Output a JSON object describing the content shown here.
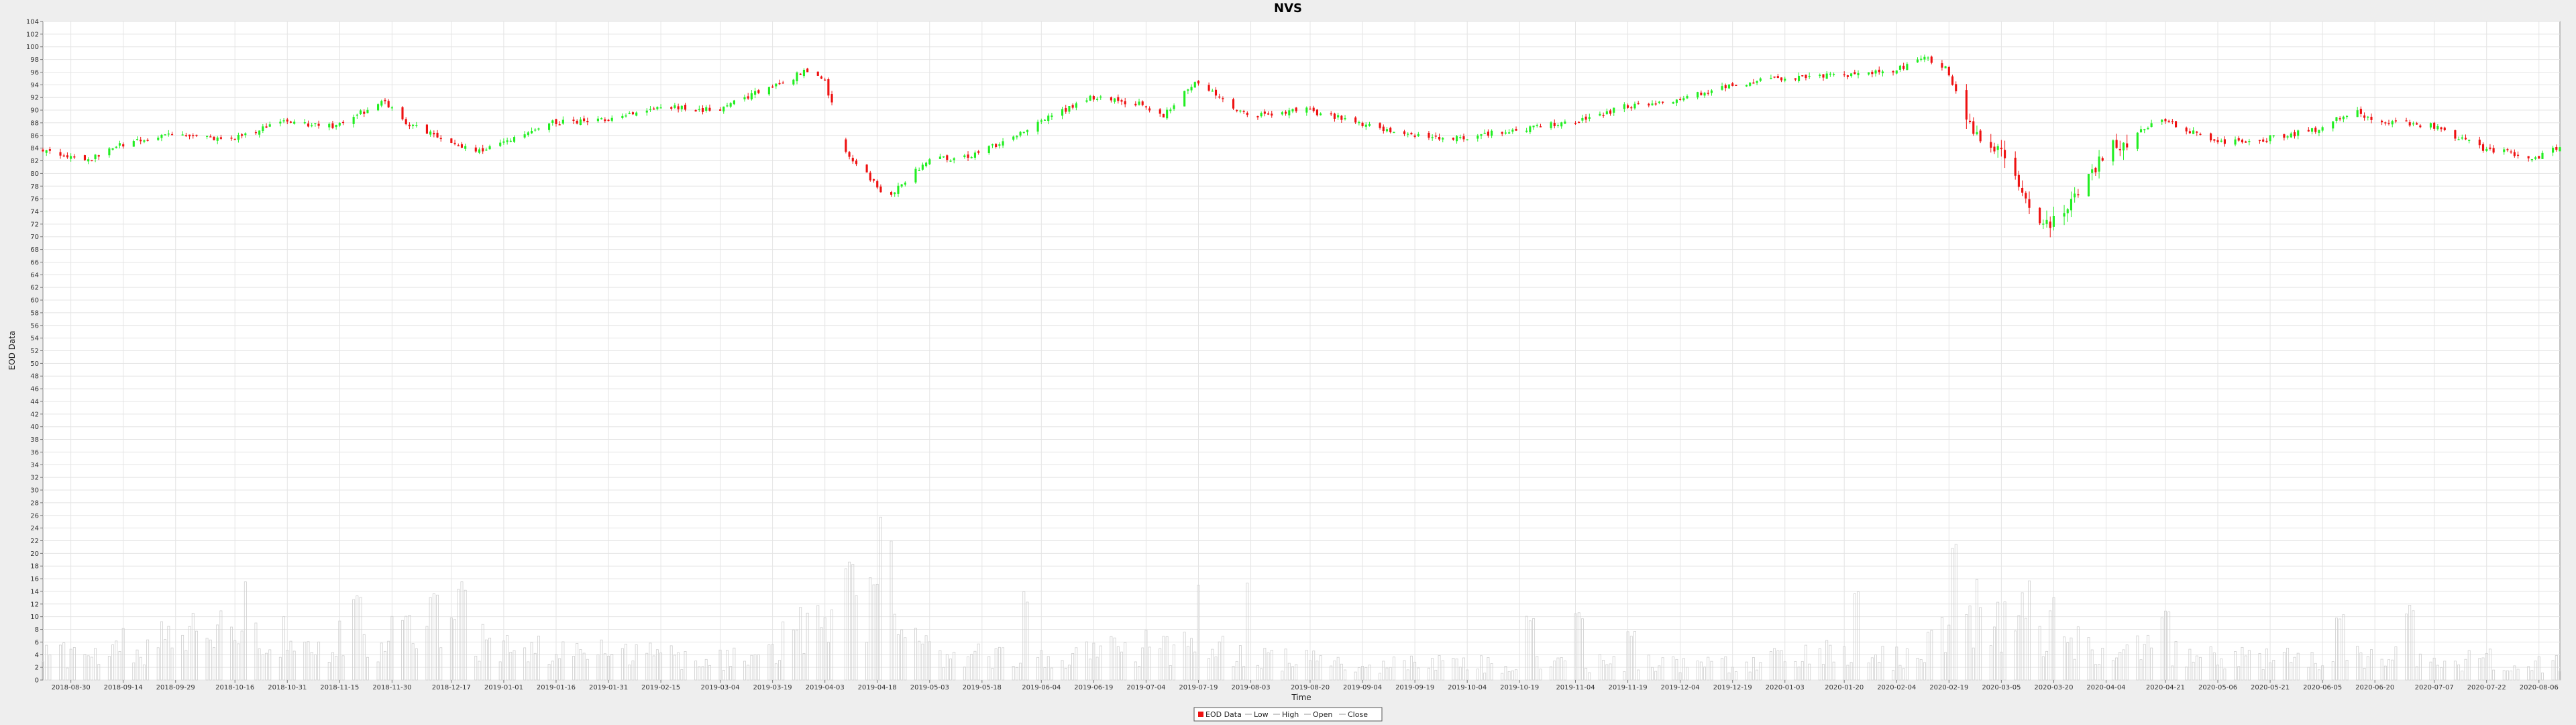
{
  "chart_data": {
    "type": "candlestick",
    "title": "NVS",
    "xlabel": "Time",
    "ylabel": "EOD Data",
    "ylim": [
      0,
      104
    ],
    "y_ticks": [
      0,
      2,
      4,
      6,
      8,
      10,
      12,
      14,
      16,
      18,
      20,
      22,
      24,
      26,
      28,
      30,
      32,
      34,
      36,
      38,
      40,
      42,
      44,
      46,
      48,
      50,
      52,
      54,
      56,
      58,
      60,
      62,
      64,
      66,
      68,
      70,
      72,
      74,
      76,
      78,
      80,
      82,
      84,
      86,
      88,
      90,
      92,
      94,
      96,
      98,
      100,
      102,
      104
    ],
    "x_range": [
      "2018-08-22",
      "2020-08-12"
    ],
    "x_ticks": [
      "2018-08-30",
      "2018-09-14",
      "2018-09-29",
      "2018-10-16",
      "2018-10-31",
      "2018-11-15",
      "2018-11-30",
      "2018-12-17",
      "2019-01-01",
      "2019-01-16",
      "2019-01-31",
      "2019-02-15",
      "2019-03-04",
      "2019-03-19",
      "2019-04-03",
      "2019-04-18",
      "2019-05-03",
      "2019-05-18",
      "2019-06-04",
      "2019-06-19",
      "2019-07-04",
      "2019-07-19",
      "2019-08-03",
      "2019-08-20",
      "2019-09-04",
      "2019-09-19",
      "2019-10-04",
      "2019-10-19",
      "2019-11-04",
      "2019-11-19",
      "2019-12-04",
      "2019-12-19",
      "2020-01-03",
      "2020-01-20",
      "2020-02-04",
      "2020-02-19",
      "2020-03-05",
      "2020-03-20",
      "2020-04-04",
      "2020-04-21",
      "2020-05-06",
      "2020-05-21",
      "2020-06-05",
      "2020-06-20",
      "2020-07-07",
      "2020-07-22",
      "2020-08-06"
    ],
    "grid": true,
    "legend_position": "bottom",
    "legend": [
      "EOD Data",
      "Low",
      "High",
      "Open",
      "Close"
    ],
    "colors": {
      "up": "#22ee22",
      "down": "#ee1111",
      "volume_bar": "#cfcfcf",
      "grid": "#e4e4e4",
      "plot_background": "#ffffff"
    },
    "price_path": [
      [
        "2018-08-22",
        84.0
      ],
      [
        "2018-09-05",
        82.0
      ],
      [
        "2018-09-14",
        84.5
      ],
      [
        "2018-09-29",
        86.0
      ],
      [
        "2018-10-16",
        85.5
      ],
      [
        "2018-10-31",
        88.0
      ],
      [
        "2018-11-15",
        87.5
      ],
      [
        "2018-11-29",
        91.5
      ],
      [
        "2018-12-03",
        88.5
      ],
      [
        "2018-12-24",
        83.5
      ],
      [
        "2019-01-01",
        84.5
      ],
      [
        "2019-01-16",
        88.0
      ],
      [
        "2019-01-31",
        88.5
      ],
      [
        "2019-02-15",
        90.5
      ],
      [
        "2019-03-04",
        90.0
      ],
      [
        "2019-03-19",
        93.5
      ],
      [
        "2019-03-29",
        96.0
      ],
      [
        "2019-04-04",
        94.5
      ],
      [
        "2019-04-10",
        83.5
      ],
      [
        "2019-04-22",
        76.0
      ],
      [
        "2019-05-03",
        82.0
      ],
      [
        "2019-05-18",
        83.0
      ],
      [
        "2019-06-04",
        88.0
      ],
      [
        "2019-06-19",
        92.0
      ],
      [
        "2019-07-04",
        91.0
      ],
      [
        "2019-07-10",
        89.0
      ],
      [
        "2019-07-19",
        94.5
      ],
      [
        "2019-08-03",
        89.0
      ],
      [
        "2019-08-20",
        90.0
      ],
      [
        "2019-09-04",
        88.0
      ],
      [
        "2019-09-19",
        86.0
      ],
      [
        "2019-10-04",
        85.5
      ],
      [
        "2019-10-19",
        87.0
      ],
      [
        "2019-11-04",
        88.0
      ],
      [
        "2019-11-19",
        90.5
      ],
      [
        "2019-12-04",
        91.5
      ],
      [
        "2019-12-19",
        94.0
      ],
      [
        "2020-01-03",
        95.0
      ],
      [
        "2020-01-20",
        95.5
      ],
      [
        "2020-02-04",
        96.0
      ],
      [
        "2020-02-12",
        98.5
      ],
      [
        "2020-02-19",
        96.5
      ],
      [
        "2020-02-27",
        86.0
      ],
      [
        "2020-03-05",
        84.0
      ],
      [
        "2020-03-16",
        72.0
      ],
      [
        "2020-03-23",
        73.0
      ],
      [
        "2020-04-04",
        83.0
      ],
      [
        "2020-04-21",
        88.5
      ],
      [
        "2020-05-06",
        85.0
      ],
      [
        "2020-05-21",
        85.5
      ],
      [
        "2020-06-05",
        87.0
      ],
      [
        "2020-06-15",
        90.0
      ],
      [
        "2020-06-20",
        88.5
      ],
      [
        "2020-07-07",
        87.5
      ],
      [
        "2020-07-22",
        84.0
      ],
      [
        "2020-08-06",
        82.5
      ],
      [
        "2020-08-12",
        84.0
      ]
    ],
    "data_gap": [
      "2019-04-06",
      "2019-04-08"
    ],
    "volume_path": [
      [
        "2018-08-22",
        4
      ],
      [
        "2018-10-16",
        9
      ],
      [
        "2018-11-15",
        7
      ],
      [
        "2018-12-17",
        8
      ],
      [
        "2019-01-16",
        5
      ],
      [
        "2019-03-04",
        4
      ],
      [
        "2019-03-19",
        6
      ],
      [
        "2019-04-10",
        14
      ],
      [
        "2019-04-18",
        12
      ],
      [
        "2019-05-03",
        5
      ],
      [
        "2019-06-04",
        4
      ],
      [
        "2019-07-19",
        7
      ],
      [
        "2019-08-03",
        4
      ],
      [
        "2019-09-04",
        3
      ],
      [
        "2019-10-19",
        3
      ],
      [
        "2019-12-19",
        3
      ],
      [
        "2020-01-20",
        5
      ],
      [
        "2020-02-04",
        4
      ],
      [
        "2020-02-27",
        12
      ],
      [
        "2020-03-20",
        9
      ],
      [
        "2020-04-04",
        6
      ],
      [
        "2020-05-06",
        4
      ],
      [
        "2020-06-20",
        4
      ],
      [
        "2020-07-22",
        4
      ],
      [
        "2020-08-12",
        3
      ]
    ],
    "volume_spikes": [
      [
        "2018-10-20",
        16
      ],
      [
        "2018-11-20",
        14
      ],
      [
        "2018-12-12",
        15
      ],
      [
        "2018-12-20",
        16
      ],
      [
        "2019-04-10",
        20
      ],
      [
        "2019-04-20",
        26
      ],
      [
        "2019-04-21",
        24
      ],
      [
        "2019-05-31",
        14
      ],
      [
        "2019-07-20",
        15
      ],
      [
        "2019-08-03",
        17
      ],
      [
        "2019-10-22",
        11
      ],
      [
        "2019-11-05",
        11
      ],
      [
        "2019-11-20",
        8
      ],
      [
        "2020-01-24",
        16
      ],
      [
        "2020-02-21",
        22
      ],
      [
        "2020-03-14",
        17
      ],
      [
        "2020-03-21",
        14
      ],
      [
        "2020-04-21",
        11
      ],
      [
        "2020-06-10",
        11
      ],
      [
        "2020-06-30",
        12
      ]
    ]
  }
}
